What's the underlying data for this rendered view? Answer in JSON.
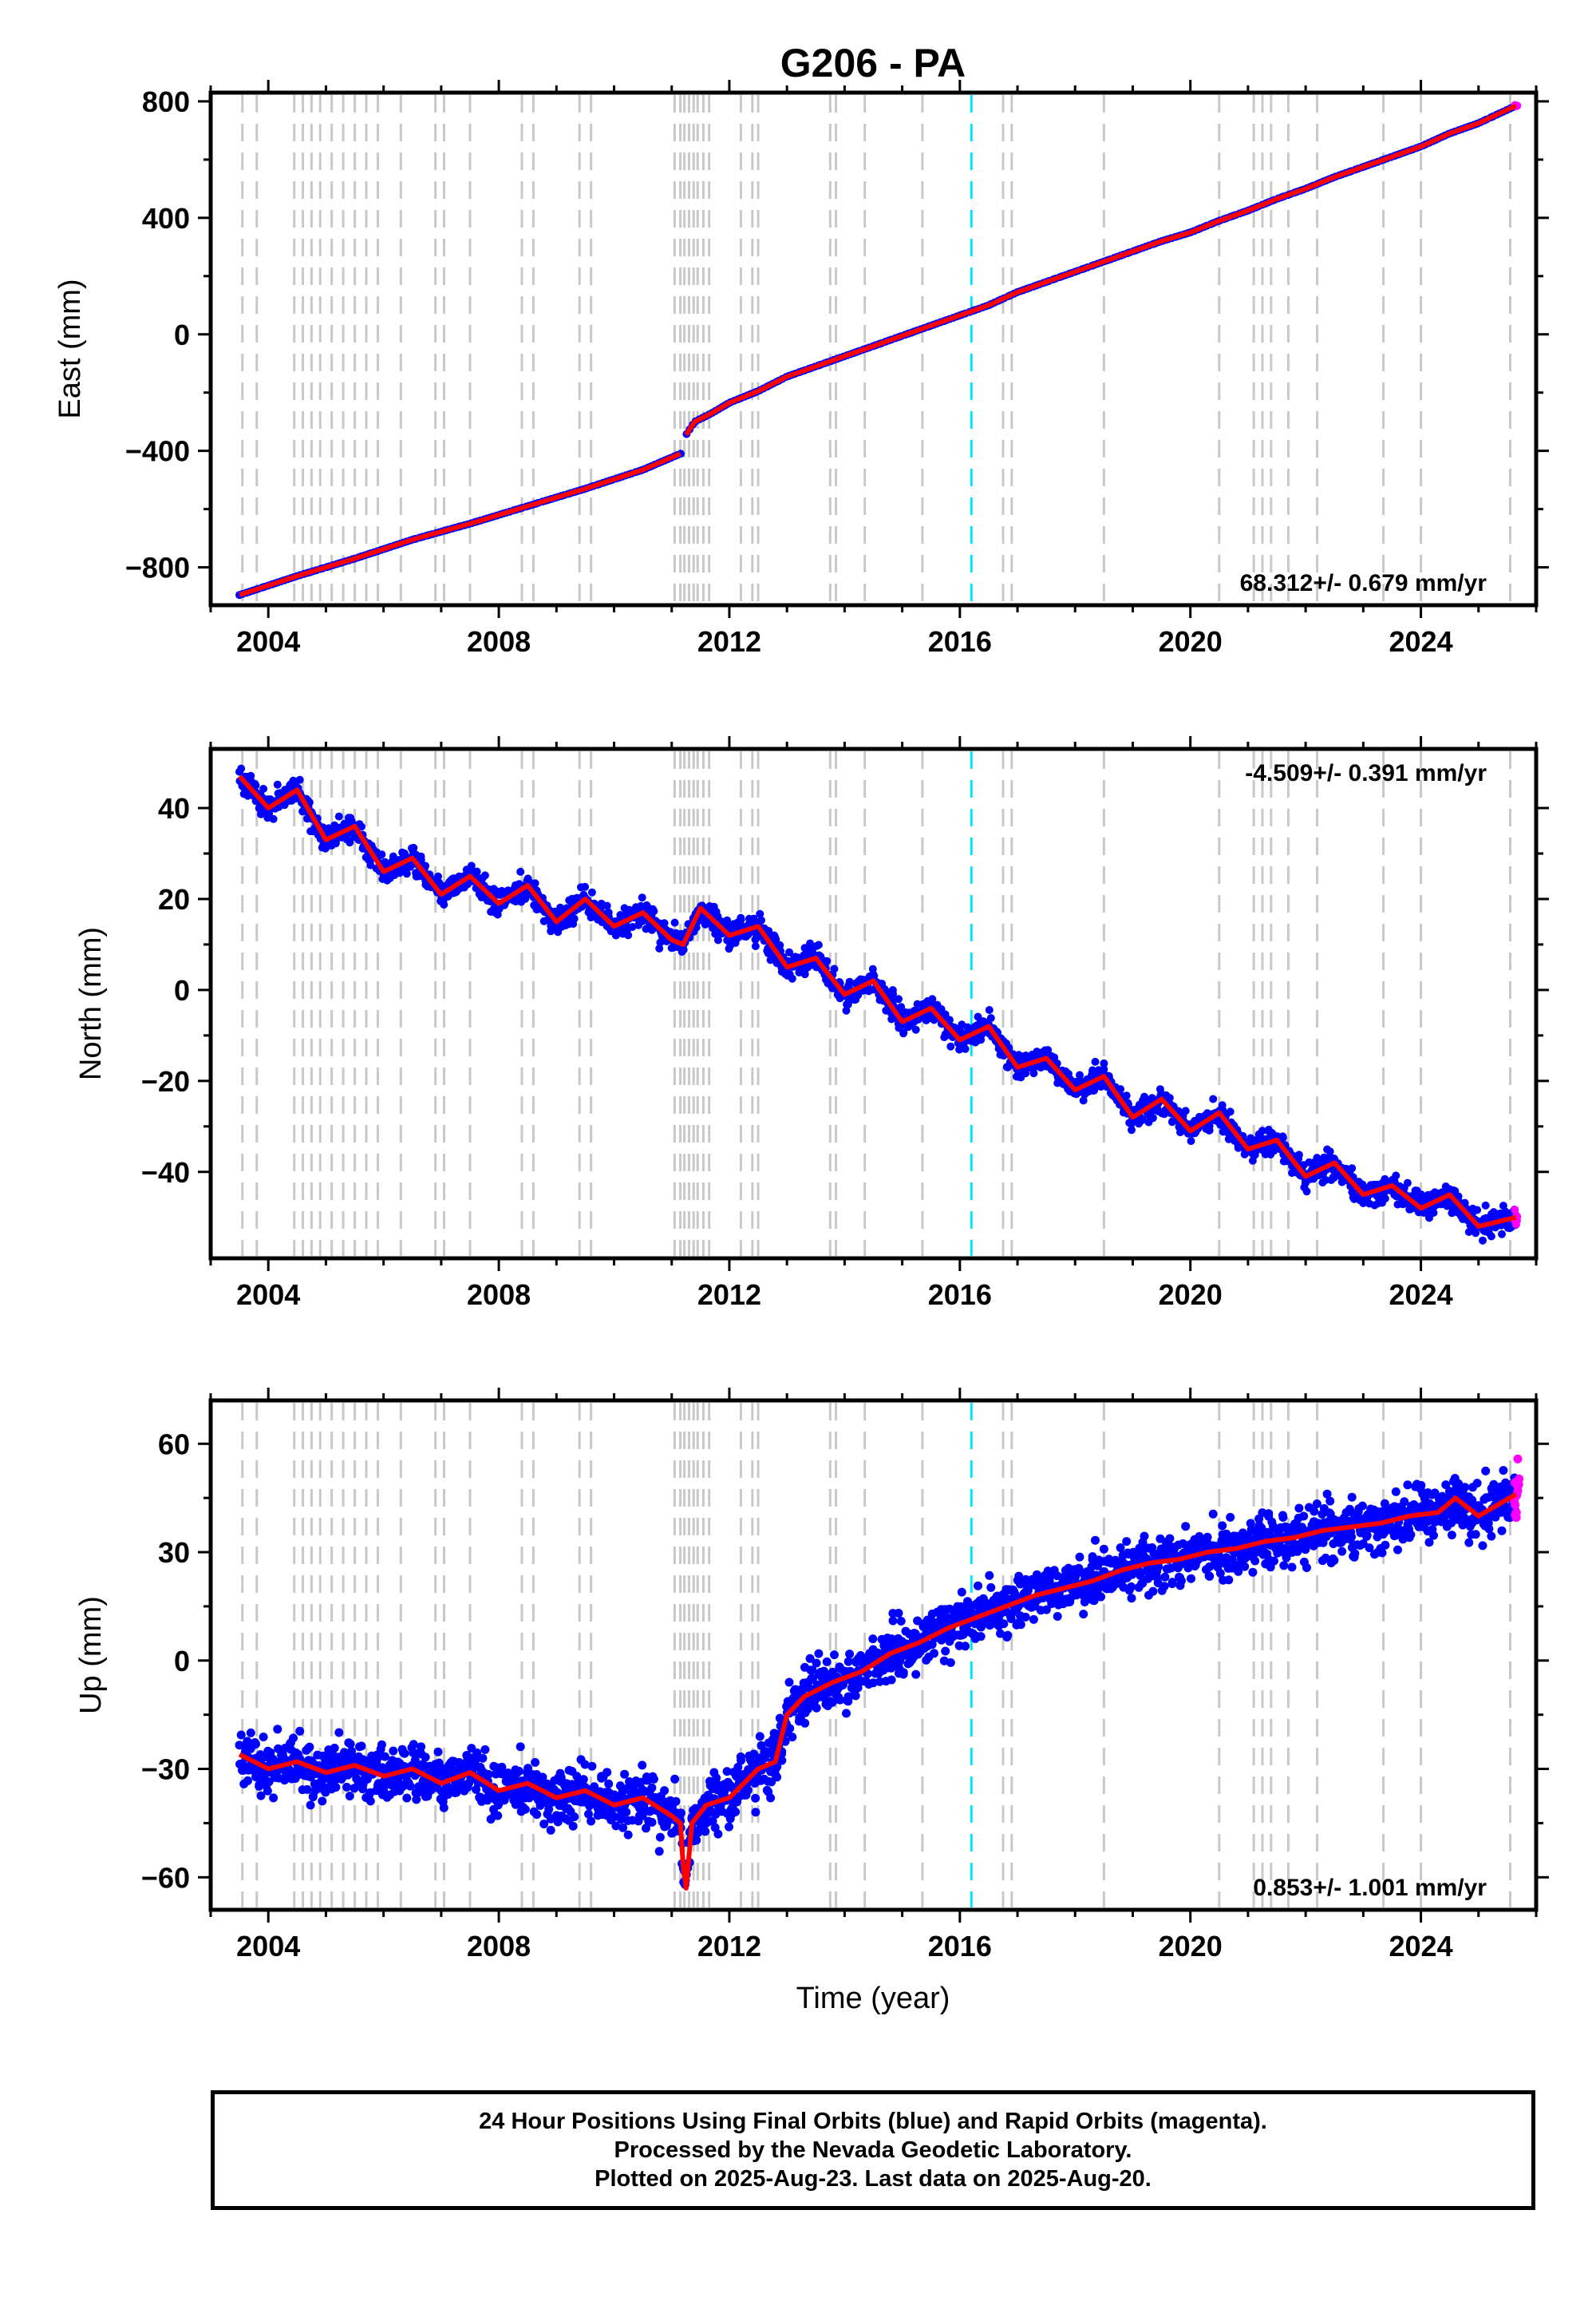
{
  "page": {
    "title": "G206 - PA",
    "x_axis_label": "Time (year)",
    "footer_lines": [
      "24 Hour Positions Using Final Orbits (blue) and Rapid Orbits (magenta).",
      "Processed by the Nevada Geodetic Laboratory.",
      "Plotted on 2025-Aug-23. Last data on 2025-Aug-20."
    ]
  },
  "colors": {
    "final_orbits": "#0000ff",
    "rapid_orbits": "#ff00ff",
    "model_fit": "#ff0000",
    "equipment_change_line": "#c8c8c8",
    "highlight_line": "#00e5ff"
  },
  "events": {
    "equipment_changes": [
      2003.55,
      2003.8,
      2004.45,
      2004.6,
      2004.75,
      2004.9,
      2005.1,
      2005.3,
      2005.5,
      2005.7,
      2005.9,
      2006.3,
      2006.9,
      2007.05,
      2007.5,
      2008.4,
      2008.6,
      2009.4,
      2009.6,
      2011.05,
      2011.15,
      2011.22,
      2011.3,
      2011.38,
      2011.45,
      2011.55,
      2011.65,
      2012.2,
      2012.4,
      2012.5,
      2013.75,
      2013.85,
      2014.35,
      2015.35,
      2016.75,
      2016.9,
      2018.5,
      2020.5,
      2021.1,
      2021.25,
      2021.4,
      2021.7,
      2022.2,
      2023.35,
      2024.0,
      2025.55
    ],
    "highlight": 2016.2
  },
  "chart_data": [
    {
      "type": "scatter",
      "ylabel": "East (mm)",
      "x_tick_labels": [
        "2004",
        "2008",
        "2012",
        "2016",
        "2020",
        "2024"
      ],
      "x_ticks": [
        2004,
        2008,
        2012,
        2016,
        2020,
        2024
      ],
      "xlim": [
        2003.0,
        2026.0
      ],
      "y_tick_labels": [
        "800",
        "400",
        "0",
        "−400",
        "−800"
      ],
      "y_ticks": [
        800,
        400,
        0,
        -400,
        -800
      ],
      "ylim": [
        -930,
        830
      ],
      "rate_label": "68.312+/- 0.679 mm/yr",
      "rate_position": "bottom-right",
      "series": [
        {
          "x": [
            2003.5,
            2004.5,
            2005.5,
            2006.5,
            2007.5,
            2008.5,
            2009.5,
            2010.5,
            2011.15
          ],
          "y": [
            -895,
            -830,
            -770,
            -705,
            -650,
            -590,
            -530,
            -465,
            -410
          ]
        },
        {
          "x": [
            2011.25,
            2011.4,
            2011.7,
            2012.0,
            2012.5,
            2013.0,
            2013.5,
            2014.0,
            2014.5,
            2015.0,
            2015.5,
            2016.0,
            2016.5,
            2017.0,
            2017.5,
            2018.0,
            2018.5,
            2019.0,
            2019.5,
            2020.0,
            2020.5,
            2021.0,
            2021.5,
            2022.0,
            2022.5,
            2023.0,
            2023.5,
            2024.0,
            2024.5,
            2025.0,
            2025.65
          ],
          "y": [
            -345,
            -300,
            -270,
            -235,
            -195,
            -145,
            -110,
            -75,
            -40,
            -5,
            30,
            65,
            100,
            145,
            180,
            215,
            250,
            285,
            320,
            350,
            390,
            425,
            465,
            500,
            540,
            575,
            610,
            645,
            690,
            725,
            785
          ]
        }
      ]
    },
    {
      "type": "scatter",
      "ylabel": "North (mm)",
      "x_tick_labels": [
        "2004",
        "2008",
        "2012",
        "2016",
        "2020",
        "2024"
      ],
      "x_ticks": [
        2004,
        2008,
        2012,
        2016,
        2020,
        2024
      ],
      "xlim": [
        2003.0,
        2026.0
      ],
      "y_tick_labels": [
        "40",
        "20",
        "0",
        "−20",
        "−40"
      ],
      "y_ticks": [
        40,
        20,
        0,
        -20,
        -40
      ],
      "ylim": [
        -59,
        53
      ],
      "rate_label": "-4.509+/- 0.391 mm/yr",
      "rate_position": "top-right",
      "series": [
        {
          "x": [
            2003.5,
            2004.0,
            2004.5,
            2005.0,
            2005.5,
            2006.0,
            2006.5,
            2007.0,
            2007.5,
            2008.0,
            2008.5,
            2009.0,
            2009.5,
            2010.0,
            2010.5,
            2011.0,
            2011.2,
            2011.5,
            2012.0,
            2012.5,
            2013.0,
            2013.5,
            2014.0,
            2014.5,
            2015.0,
            2015.5,
            2016.0,
            2016.5,
            2017.0,
            2017.5,
            2018.0,
            2018.5,
            2019.0,
            2019.5,
            2020.0,
            2020.5,
            2021.0,
            2021.5,
            2022.0,
            2022.5,
            2023.0,
            2023.5,
            2024.0,
            2024.5,
            2025.0,
            2025.65
          ],
          "y": [
            47,
            40,
            44,
            33,
            36,
            26,
            29,
            21,
            25,
            19,
            23,
            15,
            20,
            14,
            17,
            11,
            10,
            18,
            12,
            14,
            5,
            7,
            -1,
            2,
            -7,
            -4,
            -11,
            -8,
            -17,
            -15,
            -22,
            -19,
            -28,
            -24,
            -31,
            -27,
            -35,
            -33,
            -41,
            -38,
            -45,
            -43,
            -48,
            -45,
            -52,
            -50
          ]
        }
      ]
    },
    {
      "type": "scatter",
      "ylabel": "Up (mm)",
      "x_tick_labels": [
        "2004",
        "2008",
        "2012",
        "2016",
        "2020",
        "2024"
      ],
      "x_ticks": [
        2004,
        2008,
        2012,
        2016,
        2020,
        2024
      ],
      "xlim": [
        2003.0,
        2026.0
      ],
      "y_tick_labels": [
        "60",
        "30",
        "0",
        "−30",
        "−60"
      ],
      "y_ticks": [
        60,
        30,
        0,
        -30,
        -60
      ],
      "ylim": [
        -69,
        72
      ],
      "rate_label": "0.853+/- 1.001 mm/yr",
      "rate_position": "bottom-right",
      "series": [
        {
          "x": [
            2003.5,
            2004.0,
            2004.5,
            2005.0,
            2005.5,
            2006.0,
            2006.5,
            2007.0,
            2007.5,
            2008.0,
            2008.5,
            2009.0,
            2009.5,
            2010.0,
            2010.5,
            2011.0,
            2011.15,
            2011.2,
            2011.25,
            2011.35,
            2011.6,
            2012.0,
            2012.5,
            2012.8,
            2013.0,
            2013.3,
            2013.8,
            2014.3,
            2014.8,
            2015.3,
            2015.8,
            2016.3,
            2016.8,
            2017.3,
            2017.8,
            2018.3,
            2018.8,
            2019.3,
            2019.8,
            2020.3,
            2020.8,
            2021.3,
            2021.8,
            2022.3,
            2022.8,
            2023.3,
            2023.8,
            2024.3,
            2024.6,
            2025.0,
            2025.65
          ],
          "y": [
            -26,
            -30,
            -28,
            -31,
            -29,
            -32,
            -30,
            -34,
            -31,
            -36,
            -34,
            -38,
            -36,
            -40,
            -38,
            -43,
            -45,
            -57,
            -63,
            -45,
            -40,
            -38,
            -30,
            -28,
            -15,
            -10,
            -6,
            -3,
            2,
            5,
            9,
            12,
            15,
            18,
            20,
            22,
            25,
            27,
            28,
            30,
            31,
            33,
            34,
            36,
            37,
            38,
            40,
            41,
            45,
            40,
            46
          ]
        },
        {
          "x": [
            2025.62,
            2025.65,
            2025.68,
            2025.7
          ],
          "y": [
            40,
            45,
            50,
            52
          ]
        }
      ]
    }
  ]
}
